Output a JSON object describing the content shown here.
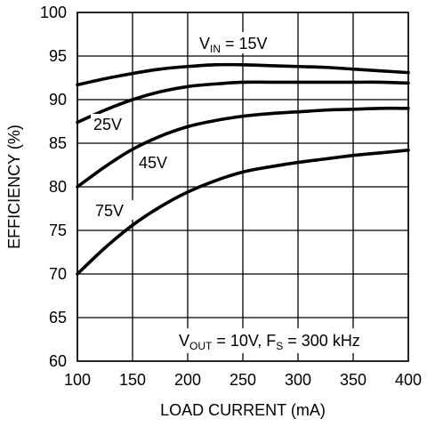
{
  "chart_data": {
    "type": "line",
    "title": "",
    "xlabel": "LOAD CURRENT (mA)",
    "ylabel": "EFFICIENCY (%)",
    "xlim": [
      100,
      400
    ],
    "ylim": [
      60,
      100
    ],
    "x_ticks": [
      "100",
      "150",
      "200",
      "250",
      "300",
      "350",
      "400"
    ],
    "y_ticks": [
      "60",
      "65",
      "70",
      "75",
      "80",
      "85",
      "90",
      "95",
      "100"
    ],
    "grid": true,
    "x": [
      100,
      125,
      150,
      175,
      200,
      225,
      250,
      275,
      300,
      325,
      350,
      375,
      400
    ],
    "series": [
      {
        "name": "15V",
        "values": [
          91.7,
          92.4,
          93.0,
          93.5,
          93.8,
          94.0,
          94.0,
          93.9,
          93.8,
          93.7,
          93.5,
          93.3,
          93.1
        ]
      },
      {
        "name": "25V",
        "values": [
          87.4,
          88.8,
          90.0,
          90.9,
          91.5,
          91.8,
          92.0,
          92.0,
          92.0,
          92.0,
          92.0,
          92.0,
          91.9
        ]
      },
      {
        "name": "45V",
        "values": [
          80.0,
          82.3,
          84.3,
          85.8,
          86.9,
          87.6,
          88.1,
          88.4,
          88.6,
          88.8,
          88.9,
          89.0,
          89.0
        ]
      },
      {
        "name": "75V",
        "values": [
          70.0,
          73.0,
          75.6,
          77.7,
          79.4,
          80.7,
          81.7,
          82.3,
          82.8,
          83.2,
          83.6,
          83.9,
          84.2
        ]
      }
    ],
    "annotations": {
      "vin_prefix": "V",
      "vin_sub": "IN",
      "vin_value": " = 15V",
      "label_25": "25V",
      "label_45": "45V",
      "label_75": "75V",
      "cond_v": "V",
      "cond_v_sub": "OUT",
      "cond_mid": " = 10V, F",
      "cond_f_sub": "S",
      "cond_end": " = 300 kHz"
    }
  }
}
